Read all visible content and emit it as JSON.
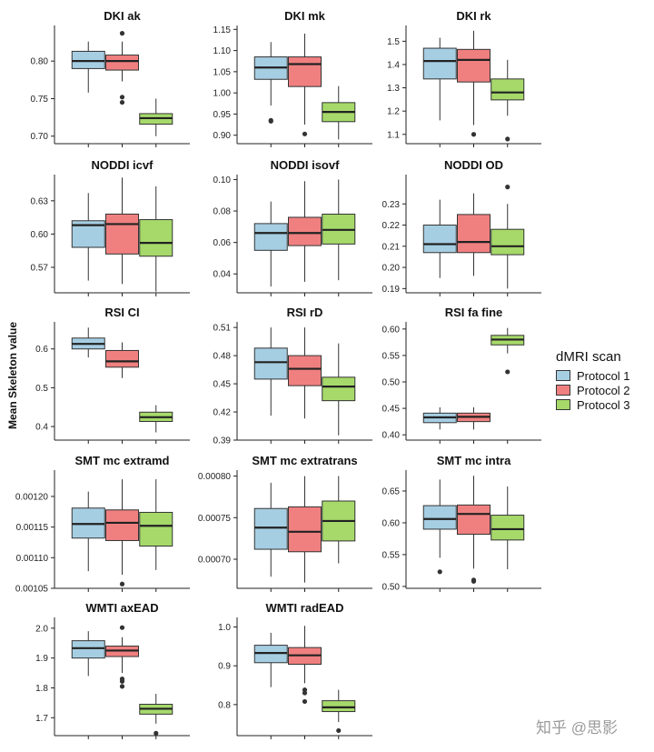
{
  "figure": {
    "y_axis_label": "Mean Skeleton value",
    "legend": {
      "title": "dMRI scan",
      "items": [
        {
          "label": "Protocol 1",
          "color": "#a6cee3"
        },
        {
          "label": "Protocol 2",
          "color": "#f08080"
        },
        {
          "label": "Protocol 3",
          "color": "#a6d96a"
        }
      ]
    },
    "watermark": "知乎 @思影"
  },
  "chart_data": [
    {
      "type": "box",
      "title": "DKI ak",
      "ylim": [
        0.69,
        0.845
      ],
      "ticks": [
        0.7,
        0.75,
        0.8
      ],
      "tick_labels": [
        "0.70",
        "0.75",
        "0.80"
      ],
      "boxes": [
        {
          "series": "Protocol 1",
          "min": 0.758,
          "q1": 0.79,
          "median": 0.8,
          "q3": 0.813,
          "max": 0.826,
          "outliers": []
        },
        {
          "series": "Protocol 2",
          "min": 0.773,
          "q1": 0.788,
          "median": 0.8,
          "q3": 0.808,
          "max": 0.826,
          "outliers": [
            0.837,
            0.752,
            0.745
          ]
        },
        {
          "series": "Protocol 3",
          "min": 0.7,
          "q1": 0.716,
          "median": 0.724,
          "q3": 0.73,
          "max": 0.75,
          "outliers": []
        }
      ]
    },
    {
      "type": "box",
      "title": "DKI mk",
      "ylim": [
        0.88,
        1.155
      ],
      "ticks": [
        0.9,
        0.95,
        1.0,
        1.05,
        1.1,
        1.15
      ],
      "tick_labels": [
        "0.90",
        "0.95",
        "1.00",
        "1.05",
        "1.10",
        "1.15"
      ],
      "boxes": [
        {
          "series": "Protocol 1",
          "min": 0.97,
          "q1": 1.032,
          "median": 1.06,
          "q3": 1.085,
          "max": 1.12,
          "outliers": [
            0.935,
            0.933
          ]
        },
        {
          "series": "Protocol 2",
          "min": 0.925,
          "q1": 1.015,
          "median": 1.068,
          "q3": 1.085,
          "max": 1.14,
          "outliers": [
            0.903
          ]
        },
        {
          "series": "Protocol 3",
          "min": 0.89,
          "q1": 0.932,
          "median": 0.955,
          "q3": 0.977,
          "max": 1.016,
          "outliers": []
        }
      ]
    },
    {
      "type": "box",
      "title": "DKI rk",
      "ylim": [
        1.06,
        1.56
      ],
      "ticks": [
        1.1,
        1.2,
        1.3,
        1.4,
        1.5
      ],
      "tick_labels": [
        "1.1",
        "1.2",
        "1.3",
        "1.4",
        "1.5"
      ],
      "boxes": [
        {
          "series": "Protocol 1",
          "min": 1.16,
          "q1": 1.338,
          "median": 1.415,
          "q3": 1.47,
          "max": 1.515,
          "outliers": []
        },
        {
          "series": "Protocol 2",
          "min": 1.14,
          "q1": 1.325,
          "median": 1.42,
          "q3": 1.465,
          "max": 1.545,
          "outliers": [
            1.1
          ]
        },
        {
          "series": "Protocol 3",
          "min": 1.18,
          "q1": 1.248,
          "median": 1.28,
          "q3": 1.338,
          "max": 1.42,
          "outliers": [
            1.08
          ]
        }
      ]
    },
    {
      "type": "box",
      "title": "NODDI icvf",
      "ylim": [
        0.547,
        0.652
      ],
      "ticks": [
        0.57,
        0.6,
        0.63
      ],
      "tick_labels": [
        "0.57",
        "0.60",
        "0.63"
      ],
      "boxes": [
        {
          "series": "Protocol 1",
          "min": 0.558,
          "q1": 0.588,
          "median": 0.608,
          "q3": 0.612,
          "max": 0.637,
          "outliers": []
        },
        {
          "series": "Protocol 2",
          "min": 0.555,
          "q1": 0.582,
          "median": 0.609,
          "q3": 0.618,
          "max": 0.651,
          "outliers": []
        },
        {
          "series": "Protocol 3",
          "min": 0.548,
          "q1": 0.58,
          "median": 0.592,
          "q3": 0.613,
          "max": 0.643,
          "outliers": []
        }
      ]
    },
    {
      "type": "box",
      "title": "NODDI isovf",
      "ylim": [
        0.028,
        0.102
      ],
      "ticks": [
        0.04,
        0.06,
        0.08,
        0.1
      ],
      "tick_labels": [
        "0.04",
        "0.06",
        "0.08",
        "0.10"
      ],
      "boxes": [
        {
          "series": "Protocol 1",
          "min": 0.032,
          "q1": 0.055,
          "median": 0.066,
          "q3": 0.072,
          "max": 0.086,
          "outliers": []
        },
        {
          "series": "Protocol 2",
          "min": 0.035,
          "q1": 0.058,
          "median": 0.066,
          "q3": 0.076,
          "max": 0.099,
          "outliers": []
        },
        {
          "series": "Protocol 3",
          "min": 0.036,
          "q1": 0.059,
          "median": 0.068,
          "q3": 0.078,
          "max": 0.1,
          "outliers": []
        }
      ]
    },
    {
      "type": "box",
      "title": "NODDI OD",
      "ylim": [
        0.188,
        0.243
      ],
      "ticks": [
        0.19,
        0.2,
        0.21,
        0.22,
        0.23
      ],
      "tick_labels": [
        "0.19",
        "0.20",
        "0.21",
        "0.22",
        "0.23"
      ],
      "boxes": [
        {
          "series": "Protocol 1",
          "min": 0.195,
          "q1": 0.207,
          "median": 0.211,
          "q3": 0.22,
          "max": 0.232,
          "outliers": []
        },
        {
          "series": "Protocol 2",
          "min": 0.196,
          "q1": 0.207,
          "median": 0.212,
          "q3": 0.225,
          "max": 0.235,
          "outliers": []
        },
        {
          "series": "Protocol 3",
          "min": 0.19,
          "q1": 0.206,
          "median": 0.21,
          "q3": 0.218,
          "max": 0.23,
          "outliers": [
            0.238
          ]
        }
      ]
    },
    {
      "type": "box",
      "title": "RSI CI",
      "ylim": [
        0.365,
        0.665
      ],
      "ticks": [
        0.4,
        0.5,
        0.6
      ],
      "tick_labels": [
        "0.4",
        "0.5",
        "0.6"
      ],
      "boxes": [
        {
          "series": "Protocol 1",
          "min": 0.578,
          "q1": 0.6,
          "median": 0.613,
          "q3": 0.628,
          "max": 0.655,
          "outliers": []
        },
        {
          "series": "Protocol 2",
          "min": 0.525,
          "q1": 0.553,
          "median": 0.568,
          "q3": 0.596,
          "max": 0.617,
          "outliers": []
        },
        {
          "series": "Protocol 3",
          "min": 0.385,
          "q1": 0.413,
          "median": 0.424,
          "q3": 0.437,
          "max": 0.455,
          "outliers": []
        }
      ]
    },
    {
      "type": "box",
      "title": "RSI rD",
      "ylim": [
        0.39,
        0.514
      ],
      "ticks": [
        0.39,
        0.42,
        0.45,
        0.48,
        0.51
      ],
      "tick_labels": [
        "0.39",
        "0.42",
        "0.45",
        "0.48",
        "0.51"
      ],
      "boxes": [
        {
          "series": "Protocol 1",
          "min": 0.416,
          "q1": 0.455,
          "median": 0.473,
          "q3": 0.488,
          "max": 0.51,
          "outliers": []
        },
        {
          "series": "Protocol 2",
          "min": 0.413,
          "q1": 0.448,
          "median": 0.466,
          "q3": 0.48,
          "max": 0.51,
          "outliers": []
        },
        {
          "series": "Protocol 3",
          "min": 0.395,
          "q1": 0.432,
          "median": 0.447,
          "q3": 0.457,
          "max": 0.493,
          "outliers": []
        }
      ]
    },
    {
      "type": "box",
      "title": "RSI fa fine",
      "ylim": [
        0.39,
        0.61
      ],
      "ticks": [
        0.4,
        0.45,
        0.5,
        0.55,
        0.6
      ],
      "tick_labels": [
        "0.40",
        "0.45",
        "0.50",
        "0.55",
        "0.60"
      ],
      "boxes": [
        {
          "series": "Protocol 1",
          "min": 0.41,
          "q1": 0.423,
          "median": 0.433,
          "q3": 0.441,
          "max": 0.452,
          "outliers": []
        },
        {
          "series": "Protocol 2",
          "min": 0.41,
          "q1": 0.425,
          "median": 0.434,
          "q3": 0.441,
          "max": 0.452,
          "outliers": []
        },
        {
          "series": "Protocol 3",
          "min": 0.554,
          "q1": 0.57,
          "median": 0.58,
          "q3": 0.588,
          "max": 0.602,
          "outliers": [
            0.519
          ]
        }
      ]
    },
    {
      "type": "box",
      "title": "SMT mc extramd",
      "ylim": [
        0.00105,
        0.00124
      ],
      "ticks": [
        0.00105,
        0.0011,
        0.00115,
        0.0012
      ],
      "tick_labels": [
        "0.00105",
        "0.00110",
        "0.00115",
        "0.00120"
      ],
      "boxes": [
        {
          "series": "Protocol 1",
          "min": 0.001078,
          "q1": 0.001132,
          "median": 0.001155,
          "q3": 0.001181,
          "max": 0.001208,
          "outliers": []
        },
        {
          "series": "Protocol 2",
          "min": 0.001072,
          "q1": 0.001128,
          "median": 0.001157,
          "q3": 0.001178,
          "max": 0.001228,
          "outliers": [
            0.001057
          ]
        },
        {
          "series": "Protocol 3",
          "min": 0.00108,
          "q1": 0.001119,
          "median": 0.001152,
          "q3": 0.001174,
          "max": 0.001228,
          "outliers": []
        }
      ]
    },
    {
      "type": "box",
      "title": "SMT mc extratrans",
      "ylim": [
        0.000665,
        0.000805
      ],
      "ticks": [
        0.0007,
        0.00075,
        0.0008
      ],
      "tick_labels": [
        "0.00070",
        "0.00075",
        "0.00080"
      ],
      "boxes": [
        {
          "series": "Protocol 1",
          "min": 0.000679,
          "q1": 0.000712,
          "median": 0.000738,
          "q3": 0.000761,
          "max": 0.000792,
          "outliers": []
        },
        {
          "series": "Protocol 2",
          "min": 0.000672,
          "q1": 0.000709,
          "median": 0.000733,
          "q3": 0.000763,
          "max": 0.0008,
          "outliers": []
        },
        {
          "series": "Protocol 3",
          "min": 0.000695,
          "q1": 0.000722,
          "median": 0.000746,
          "q3": 0.00077,
          "max": 0.0008,
          "outliers": []
        }
      ]
    },
    {
      "type": "box",
      "title": "SMT mc intra",
      "ylim": [
        0.497,
        0.68
      ],
      "ticks": [
        0.5,
        0.55,
        0.6,
        0.65
      ],
      "tick_labels": [
        "0.50",
        "0.55",
        "0.60",
        "0.65"
      ],
      "boxes": [
        {
          "series": "Protocol 1",
          "min": 0.545,
          "q1": 0.59,
          "median": 0.606,
          "q3": 0.627,
          "max": 0.668,
          "outliers": [
            0.523
          ]
        },
        {
          "series": "Protocol 2",
          "min": 0.528,
          "q1": 0.582,
          "median": 0.614,
          "q3": 0.628,
          "max": 0.674,
          "outliers": [
            0.51,
            0.508
          ]
        },
        {
          "series": "Protocol 3",
          "min": 0.527,
          "q1": 0.573,
          "median": 0.59,
          "q3": 0.612,
          "max": 0.657,
          "outliers": []
        }
      ]
    },
    {
      "type": "box",
      "title": "WMTI axEAD",
      "ylim": [
        1.64,
        2.03
      ],
      "ticks": [
        1.7,
        1.8,
        1.9,
        2.0
      ],
      "tick_labels": [
        "1.7",
        "1.8",
        "1.9",
        "2.0"
      ],
      "boxes": [
        {
          "series": "Protocol 1",
          "min": 1.84,
          "q1": 1.9,
          "median": 1.933,
          "q3": 1.958,
          "max": 1.99,
          "outliers": []
        },
        {
          "series": "Protocol 2",
          "min": 1.85,
          "q1": 1.905,
          "median": 1.925,
          "q3": 1.94,
          "max": 1.97,
          "outliers": [
            2.002,
            1.83,
            1.822,
            1.805
          ]
        },
        {
          "series": "Protocol 3",
          "min": 1.68,
          "q1": 1.712,
          "median": 1.73,
          "q3": 1.745,
          "max": 1.78,
          "outliers": [
            1.648
          ]
        }
      ]
    },
    {
      "type": "box",
      "title": "WMTI radEAD",
      "ylim": [
        0.72,
        1.02
      ],
      "ticks": [
        0.8,
        0.9,
        1.0
      ],
      "tick_labels": [
        "0.8",
        "0.9",
        "1.0"
      ],
      "boxes": [
        {
          "series": "Protocol 1",
          "min": 0.845,
          "q1": 0.908,
          "median": 0.933,
          "q3": 0.953,
          "max": 0.985,
          "outliers": []
        },
        {
          "series": "Protocol 2",
          "min": 0.855,
          "q1": 0.904,
          "median": 0.927,
          "q3": 0.947,
          "max": 1.003,
          "outliers": [
            0.838,
            0.83,
            0.808
          ]
        },
        {
          "series": "Protocol 3",
          "min": 0.755,
          "q1": 0.782,
          "median": 0.793,
          "q3": 0.81,
          "max": 0.838,
          "outliers": [
            0.733
          ]
        }
      ]
    }
  ]
}
